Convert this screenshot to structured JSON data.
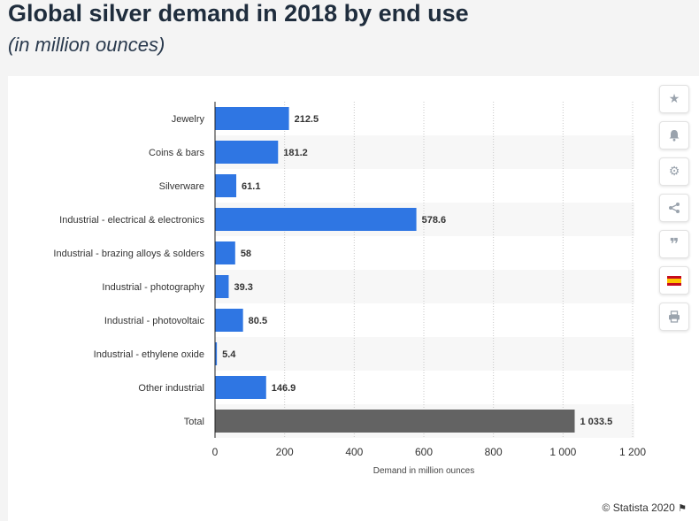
{
  "title": "Global silver demand in 2018 by end use",
  "subtitle": "(in million ounces)",
  "credit": "© Statista 2020",
  "sidebar": {
    "icons": [
      "star-icon",
      "bell-icon",
      "gear-icon",
      "share-icon",
      "quote-icon",
      "spain-flag-icon",
      "print-icon"
    ]
  },
  "colors": {
    "bar": "#2f76e3",
    "total_bar": "#636363",
    "stripe": "#f7f7f7",
    "grid": "#c8c8c8"
  },
  "chart_data": {
    "type": "bar",
    "orientation": "horizontal",
    "categories": [
      "Jewelry",
      "Coins & bars",
      "Silverware",
      "Industrial - electrical & electronics",
      "Industrial - brazing alloys & solders",
      "Industrial - photography",
      "Industrial - photovoltaic",
      "Industrial - ethylene oxide",
      "Other industrial",
      "Total"
    ],
    "values": [
      212.5,
      181.2,
      61.1,
      578.6,
      58,
      39.3,
      80.5,
      5.4,
      146.9,
      1033.5
    ],
    "data_labels": [
      "212.5",
      "181.2",
      "61.1",
      "578.6",
      "58",
      "39.3",
      "80.5",
      "5.4",
      "146.9",
      "1 033.5"
    ],
    "highlight_category": "Total",
    "xlabel": "Demand in million ounces",
    "xlim": [
      0,
      1200
    ],
    "xticks": [
      0,
      200,
      400,
      600,
      800,
      1000,
      1200
    ],
    "xtick_labels": [
      "0",
      "200",
      "400",
      "600",
      "800",
      "1 000",
      "1 200"
    ],
    "grid": "vertical dotted",
    "legend": "none"
  }
}
